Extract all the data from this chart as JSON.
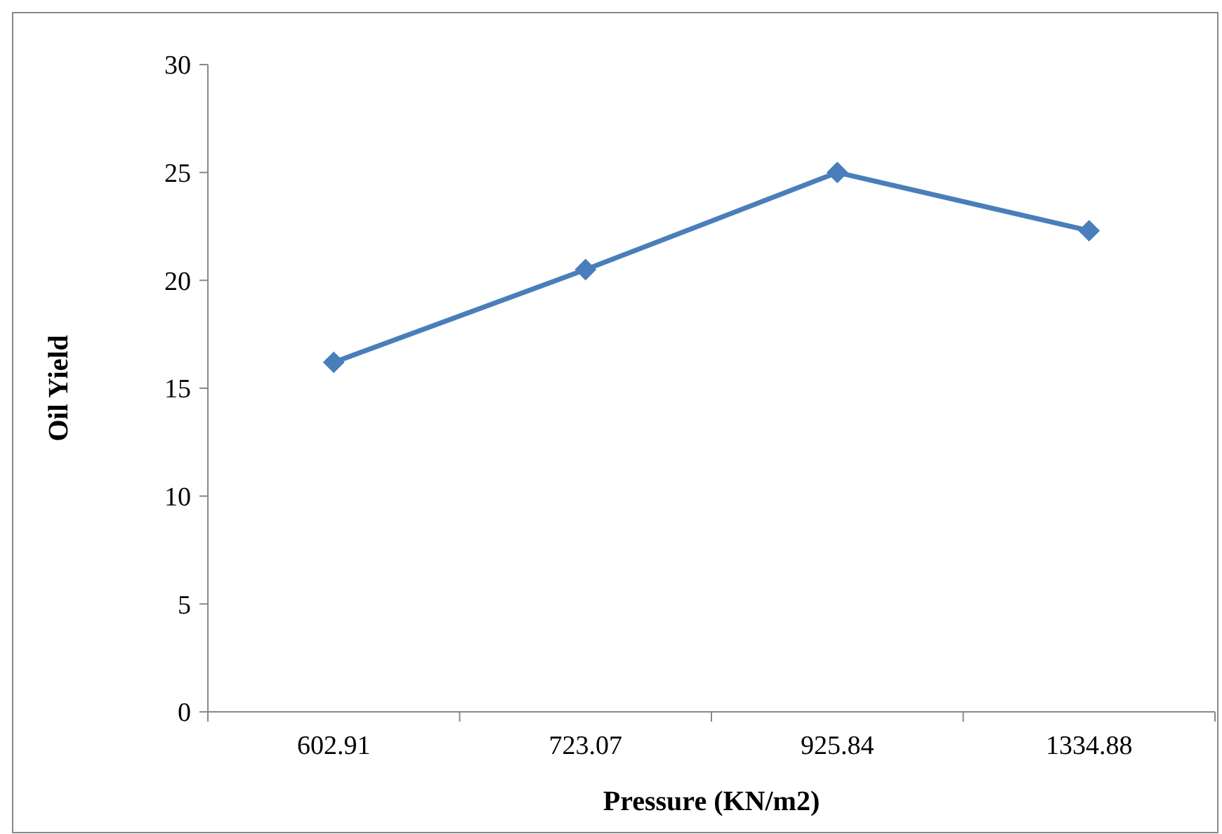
{
  "chart_data": {
    "type": "line",
    "xlabel": "Pressure (KN/m2)",
    "ylabel": "Oil Yield",
    "categories": [
      "602.91",
      "723.07",
      "925.84",
      "1334.88"
    ],
    "series": [
      {
        "color": "#4a7ebb",
        "values": [
          16.2,
          20.5,
          25.0,
          22.3
        ]
      }
    ],
    "ylim": [
      0,
      30
    ],
    "yticks": [
      0,
      5,
      10,
      15,
      20,
      25,
      30
    ],
    "grid": false,
    "marker": "diamond",
    "line_style": "solid"
  }
}
